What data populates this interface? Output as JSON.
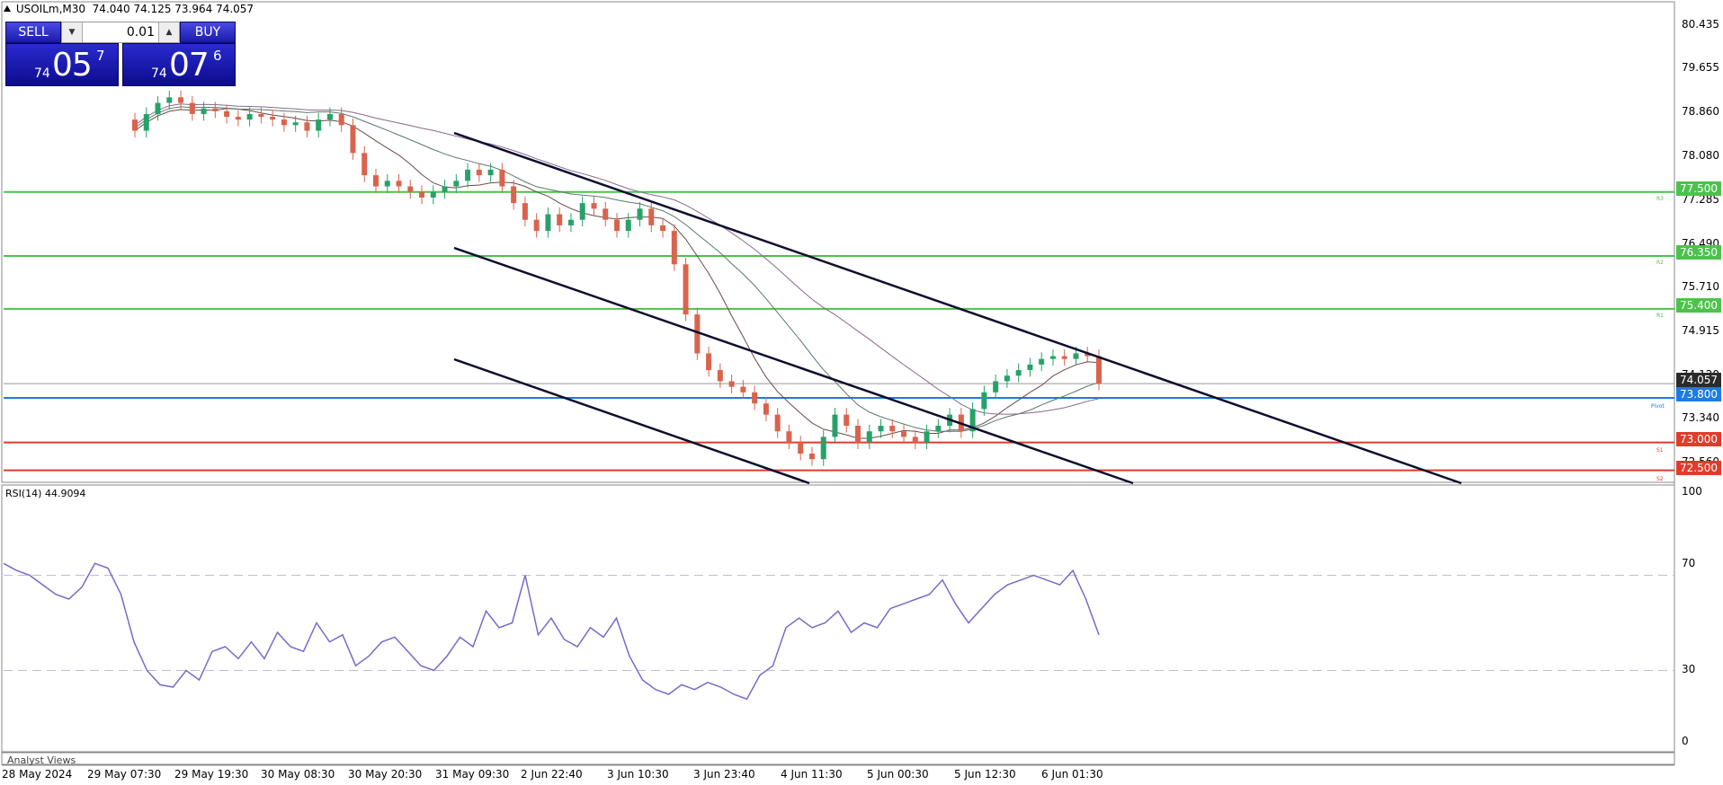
{
  "header": {
    "symbol": "USOILm,M30",
    "ohlc": "74.040 74.125 73.964 74.057"
  },
  "trade": {
    "sell_label": "SELL",
    "buy_label": "BUY",
    "lot": "0.01",
    "sell_prefix": "74",
    "sell_big": "05",
    "sell_sup": "7",
    "buy_prefix": "74",
    "buy_big": "07",
    "buy_sup": "6",
    "down_arrow": "▼",
    "up_arrow": "▲"
  },
  "price_axis": [
    "80.435",
    "79.655",
    "78.860",
    "78.080",
    "77.285",
    "76.490",
    "75.710",
    "74.915",
    "74.120",
    "73.340",
    "72.560"
  ],
  "level_tags": {
    "r3": "77.500",
    "r2": "76.350",
    "r1": "75.400",
    "current": "74.057",
    "pivot": "73.800",
    "s1": "73.000",
    "s2": "72.500"
  },
  "level_labels": {
    "r3": "R3",
    "r2": "R2",
    "r1": "R1",
    "pivot": "Pivot",
    "s1": "S1",
    "s2": "S2"
  },
  "rsi": {
    "label": "RSI(14) 44.9094",
    "axis": [
      "100",
      "70",
      "30",
      "0"
    ]
  },
  "time_axis": [
    "28 May 2024",
    "29 May 07:30",
    "29 May 19:30",
    "30 May 08:30",
    "30 May 20:30",
    "31 May 09:30",
    "2 Jun 22:40",
    "3 Jun 10:30",
    "3 Jun 23:40",
    "4 Jun 11:30",
    "5 Jun 00:30",
    "5 Jun 12:30",
    "6 Jun 01:30"
  ],
  "analyst_label": "Analyst Views",
  "colors": {
    "bull": "#26a269",
    "bear": "#d9634c",
    "resistance": "#4cc24c",
    "support": "#e03c2c",
    "pivot": "#1e7be0",
    "current": "#2b2b2b",
    "channel": "#0d0d2e",
    "rsi": "#7b68c8"
  },
  "chart_data": {
    "type": "candlestick",
    "timeframe": "M30",
    "ylim": [
      72.3,
      80.9
    ],
    "closes": [
      78.6,
      78.9,
      79.1,
      79.2,
      79.1,
      78.9,
      79.0,
      78.95,
      78.85,
      78.8,
      78.9,
      78.85,
      78.8,
      78.7,
      78.75,
      78.6,
      78.8,
      78.9,
      78.7,
      78.2,
      77.8,
      77.6,
      77.7,
      77.6,
      77.5,
      77.4,
      77.5,
      77.6,
      77.7,
      77.9,
      77.8,
      77.9,
      77.6,
      77.3,
      77.0,
      76.8,
      77.1,
      76.9,
      77.0,
      77.3,
      77.2,
      77.0,
      76.8,
      77.0,
      77.2,
      76.9,
      76.8,
      76.2,
      75.3,
      74.6,
      74.3,
      74.1,
      74.0,
      73.9,
      73.7,
      73.5,
      73.2,
      73.0,
      72.8,
      72.7,
      73.1,
      73.5,
      73.3,
      73.0,
      73.2,
      73.3,
      73.2,
      73.1,
      73.0,
      73.2,
      73.3,
      73.5,
      73.2,
      73.6,
      73.9,
      74.1,
      74.2,
      74.3,
      74.4,
      74.5,
      74.55,
      74.5,
      74.6,
      74.55,
      74.06
    ],
    "levels": {
      "R3": 77.5,
      "R2": 76.35,
      "R1": 75.4,
      "Pivot": 73.8,
      "S1": 73.0,
      "S2": 72.5,
      "current": 74.057
    },
    "rsi_values": [
      75,
      72,
      70,
      66,
      62,
      60,
      65,
      75,
      73,
      62,
      42,
      30,
      24,
      23,
      30,
      26,
      38,
      40,
      35,
      42,
      35,
      46,
      40,
      38,
      50,
      42,
      45,
      32,
      36,
      42,
      44,
      38,
      32,
      30,
      36,
      44,
      40,
      55,
      48,
      50,
      70,
      45,
      52,
      43,
      40,
      48,
      44,
      52,
      36,
      26,
      22,
      20,
      24,
      22,
      25,
      23,
      20,
      18,
      28,
      32,
      48,
      52,
      48,
      50,
      55,
      46,
      50,
      48,
      56,
      58,
      60,
      62,
      68,
      58,
      50,
      56,
      62,
      66,
      68,
      70,
      68,
      66,
      72,
      60,
      45
    ],
    "rsi_ylim": [
      0,
      100
    ]
  }
}
